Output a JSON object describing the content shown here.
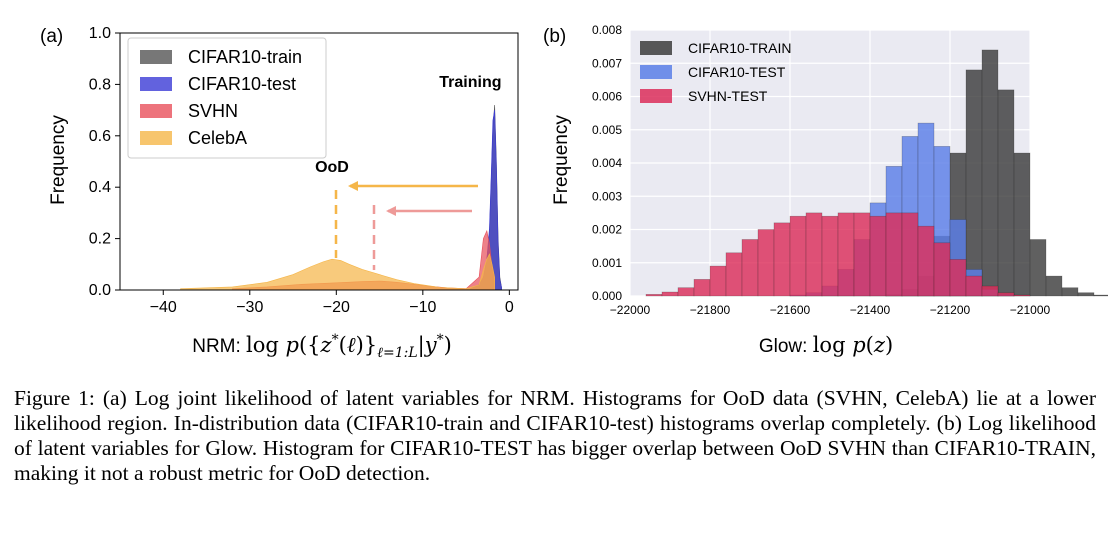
{
  "chart_data": [
    {
      "type": "histogram",
      "panel_label": "(a)",
      "xlabel": "NRM: log p({z*(ℓ)}ℓ=1:L|y*)",
      "ylabel": "Frequency",
      "xlim": [
        -45,
        1
      ],
      "ylim": [
        0,
        1.0
      ],
      "xticks": [
        "−40",
        "−30",
        "−20",
        "−10",
        "0"
      ],
      "xtick_values": [
        -40,
        -30,
        -20,
        -10,
        0
      ],
      "yticks": [
        "0.0",
        "0.2",
        "0.4",
        "0.6",
        "0.8",
        "1.0"
      ],
      "ytick_values": [
        0,
        0.2,
        0.4,
        0.6,
        0.8,
        1.0
      ],
      "grid": false,
      "legend_position": "top-left",
      "annotations": [
        {
          "text": "Training",
          "x": -4.5,
          "y": 0.79
        },
        {
          "text": "OoD",
          "x": -20.5,
          "y": 0.46
        }
      ],
      "series": [
        {
          "name": "CIFAR10-train",
          "color": "#555555",
          "points": [
            [
              -4.5,
              0.005
            ],
            [
              -3.5,
              0.02
            ],
            [
              -3.0,
              0.05
            ],
            [
              -2.6,
              0.12
            ],
            [
              -2.3,
              0.22
            ],
            [
              -2.1,
              0.42
            ],
            [
              -1.9,
              0.63
            ],
            [
              -1.7,
              0.72
            ],
            [
              -1.5,
              0.5
            ],
            [
              -1.3,
              0.2
            ],
            [
              -1.1,
              0.05
            ],
            [
              -0.9,
              0.01
            ]
          ]
        },
        {
          "name": "CIFAR10-test",
          "color": "#3b3bd6",
          "points": [
            [
              -4.5,
              0.005
            ],
            [
              -3.5,
              0.02
            ],
            [
              -3.0,
              0.05
            ],
            [
              -2.6,
              0.12
            ],
            [
              -2.3,
              0.24
            ],
            [
              -2.1,
              0.44
            ],
            [
              -1.9,
              0.66
            ],
            [
              -1.7,
              0.7
            ],
            [
              -1.5,
              0.48
            ],
            [
              -1.3,
              0.18
            ],
            [
              -1.1,
              0.04
            ],
            [
              -0.9,
              0.01
            ]
          ]
        },
        {
          "name": "SVHN",
          "color": "#e8505b",
          "points": [
            [
              -32,
              0.005
            ],
            [
              -28,
              0.012
            ],
            [
              -24,
              0.022
            ],
            [
              -20,
              0.028
            ],
            [
              -17,
              0.033
            ],
            [
              -15,
              0.035
            ],
            [
              -13,
              0.03
            ],
            [
              -11,
              0.022
            ],
            [
              -9,
              0.014
            ],
            [
              -7,
              0.008
            ],
            [
              -5,
              0.005
            ],
            [
              -3.5,
              0.05
            ],
            [
              -3.0,
              0.2
            ],
            [
              -2.6,
              0.23
            ],
            [
              -2.3,
              0.18
            ],
            [
              -2.0,
              0.09
            ],
            [
              -1.7,
              0.04
            ]
          ]
        },
        {
          "name": "CelebA",
          "color": "#f5b649",
          "points": [
            [
              -38,
              0.005
            ],
            [
              -32,
              0.012
            ],
            [
              -28,
              0.03
            ],
            [
              -25,
              0.06
            ],
            [
              -23,
              0.09
            ],
            [
              -21.5,
              0.11
            ],
            [
              -20.5,
              0.12
            ],
            [
              -19.5,
              0.115
            ],
            [
              -18.5,
              0.1
            ],
            [
              -17,
              0.08
            ],
            [
              -15,
              0.06
            ],
            [
              -13,
              0.04
            ],
            [
              -11,
              0.025
            ],
            [
              -8,
              0.01
            ],
            [
              -5,
              0.005
            ],
            [
              -3.5,
              0.02
            ],
            [
              -3.0,
              0.08
            ],
            [
              -2.6,
              0.12
            ],
            [
              -2.3,
              0.14
            ],
            [
              -2.0,
              0.1
            ],
            [
              -1.7,
              0.05
            ]
          ]
        }
      ]
    },
    {
      "type": "histogram",
      "panel_label": "(b)",
      "xlabel": "Glow: log p(z)",
      "ylabel": "Frequency",
      "xlim": [
        -22000,
        -21000
      ],
      "ylim": [
        0,
        0.008
      ],
      "xticks": [
        "−22000",
        "−21800",
        "−21600",
        "−21400",
        "−21200",
        "−21000"
      ],
      "xtick_values": [
        -22000,
        -21800,
        -21600,
        -21400,
        -21200,
        -21000
      ],
      "yticks": [
        "0.000",
        "0.001",
        "0.002",
        "0.003",
        "0.004",
        "0.005",
        "0.006",
        "0.007",
        "0.008"
      ],
      "ytick_values": [
        0,
        0.001,
        0.002,
        0.003,
        0.004,
        0.005,
        0.006,
        0.007,
        0.008
      ],
      "grid": true,
      "legend_position": "top-left",
      "bin_start": -22000,
      "bin_width": 40,
      "series": [
        {
          "name": "CIFAR10-TRAIN",
          "color": "#3d3d3d",
          "values": [
            0,
            0,
            0,
            0,
            0,
            0,
            0,
            0,
            0,
            0,
            0,
            0,
            0,
            0,
            0,
            0,
            5e-05,
            0.0002,
            0.0006,
            0.0018,
            0.0043,
            0.0068,
            0.0074,
            0.0062,
            0.0043,
            0.0017,
            0.0006,
            0.00025,
            0.0001,
            3e-05,
            0,
            0,
            0,
            0,
            0,
            0,
            0,
            0,
            0,
            0,
            0
          ]
        },
        {
          "name": "CIFAR10-TEST",
          "color": "#5b7fe8",
          "values": [
            0,
            0,
            0,
            0,
            0,
            0,
            0,
            0,
            0,
            0,
            3e-05,
            0.0001,
            0.0003,
            0.0008,
            0.0017,
            0.0028,
            0.0039,
            0.0048,
            0.0052,
            0.0045,
            0.0023,
            0.0008,
            0.0002,
            5e-05,
            0,
            0,
            0,
            0,
            0,
            0,
            0,
            0,
            0,
            0,
            0,
            0,
            0,
            0,
            0,
            0,
            0
          ]
        },
        {
          "name": "SVHN-TEST",
          "color": "#dc2e5a",
          "values": [
            0,
            5e-05,
            0.00012,
            0.00025,
            0.0005,
            0.0009,
            0.0013,
            0.0017,
            0.002,
            0.0022,
            0.0024,
            0.0025,
            0.0024,
            0.0025,
            0.0025,
            0.0024,
            0.0025,
            0.0025,
            0.0021,
            0.0016,
            0.0011,
            0.0006,
            0.0003,
            0.0001,
            3e-05,
            0,
            0,
            0,
            0,
            0,
            0,
            0,
            0,
            0,
            0,
            0,
            0,
            0,
            0,
            0,
            0
          ]
        }
      ]
    }
  ],
  "caption": "Figure 1: (a) Log joint likelihood of latent variables for NRM. Histograms for OoD data (SVHN, CelebA) lie at a lower likelihood region. In-distribution data (CIFAR10-train and CIFAR10-test) histograms overlap completely. (b) Log likelihood of latent variables for Glow. Histogram for CIFAR10-TEST has bigger overlap between OoD SVHN than CIFAR10-TRAIN, making it not a robust metric for OoD detection."
}
